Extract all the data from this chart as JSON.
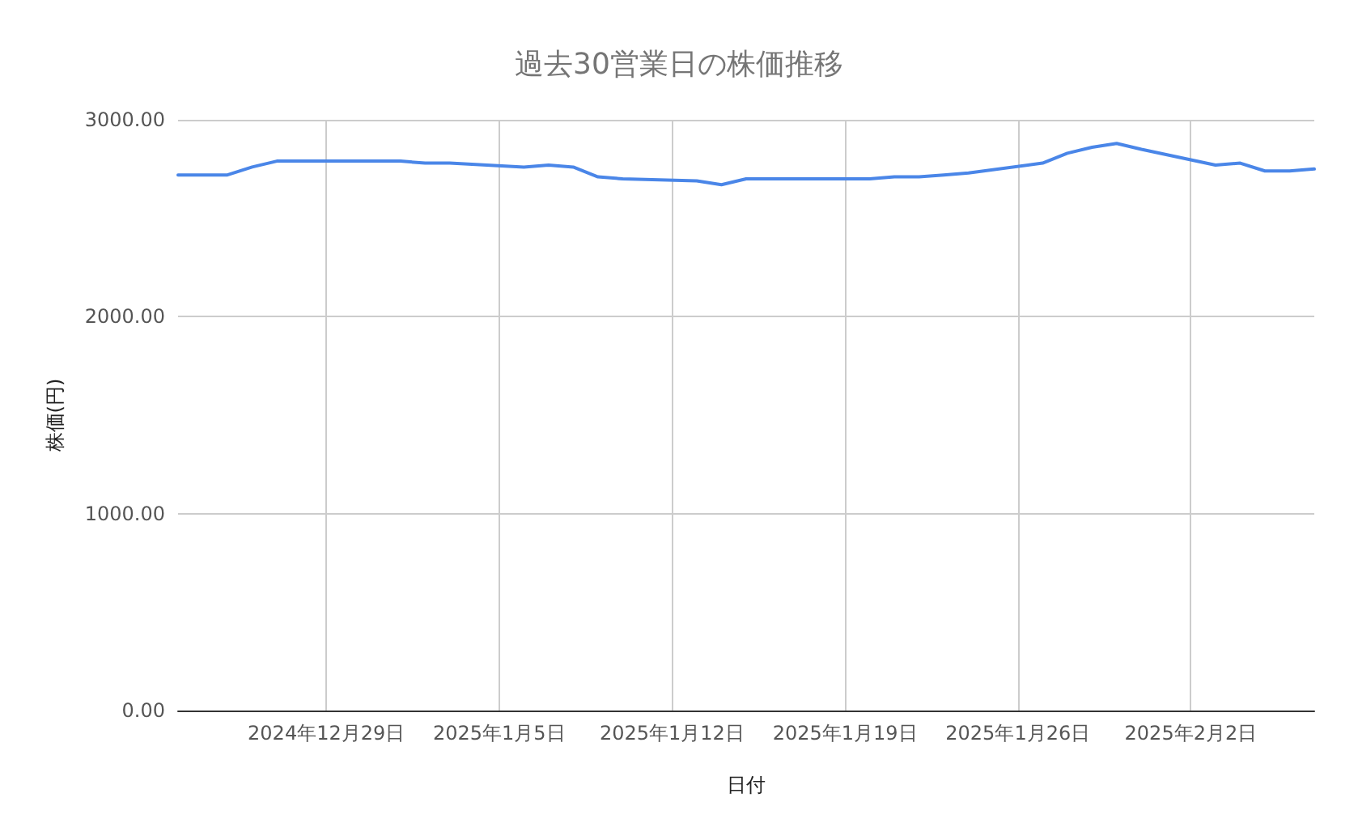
{
  "chart_data": {
    "type": "line",
    "title": "過去30営業日の株価推移",
    "xlabel": "日付",
    "ylabel": "株価(円)",
    "x": [
      "2024-12-23",
      "2024-12-24",
      "2024-12-25",
      "2024-12-26",
      "2024-12-27",
      "2024-12-30",
      "2024-12-31",
      "2025-01-01",
      "2025-01-02",
      "2025-01-03",
      "2025-01-06",
      "2025-01-07",
      "2025-01-08",
      "2025-01-09",
      "2025-01-10",
      "2025-01-13",
      "2025-01-14",
      "2025-01-15",
      "2025-01-16",
      "2025-01-17",
      "2025-01-20",
      "2025-01-21",
      "2025-01-22",
      "2025-01-23",
      "2025-01-24",
      "2025-01-27",
      "2025-01-28",
      "2025-01-29",
      "2025-01-30",
      "2025-01-31",
      "2025-02-03",
      "2025-02-04",
      "2025-02-05",
      "2025-02-06",
      "2025-02-07"
    ],
    "series": [
      {
        "color": "#4a86e8",
        "values": [
          2720,
          2720,
          2720,
          2760,
          2790,
          2790,
          2790,
          2790,
          2780,
          2780,
          2760,
          2770,
          2760,
          2710,
          2700,
          2690,
          2670,
          2700,
          2700,
          2700,
          2700,
          2710,
          2710,
          2720,
          2730,
          2780,
          2830,
          2860,
          2880,
          2850,
          2770,
          2780,
          2740,
          2740,
          2750
        ]
      }
    ],
    "xlim": [
      "2024-12-23",
      "2025-02-07"
    ],
    "xticks": [
      {
        "value": "2024-12-29",
        "label": "2024年12月29日"
      },
      {
        "value": "2025-01-05",
        "label": "2025年1月5日"
      },
      {
        "value": "2025-01-12",
        "label": "2025年1月12日"
      },
      {
        "value": "2025-01-19",
        "label": "2025年1月19日"
      },
      {
        "value": "2025-01-26",
        "label": "2025年1月26日"
      },
      {
        "value": "2025-02-02",
        "label": "2025年2月2日"
      }
    ],
    "ylim": [
      0,
      3000
    ],
    "yticks": [
      {
        "value": 0,
        "label": "0.00"
      },
      {
        "value": 1000,
        "label": "1000.00"
      },
      {
        "value": 2000,
        "label": "2000.00"
      },
      {
        "value": 3000,
        "label": "3000.00"
      }
    ],
    "grid": true,
    "marker": "none",
    "line_style": "solid"
  }
}
